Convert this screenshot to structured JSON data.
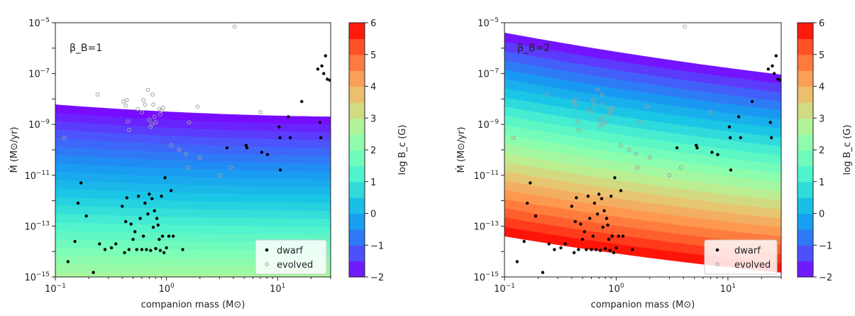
{
  "chart_data": [
    {
      "type": "scatter",
      "panel": "left",
      "annotation": "β_B=1",
      "xlabel": "companion mass (M⊙)",
      "ylabel": "Ṁ (M⊙/yr)",
      "xscale": "log",
      "yscale": "log",
      "xlim": [
        0.1,
        30
      ],
      "ylim": [
        1e-15,
        1e-05
      ],
      "x_ticks": [
        {
          "value": 0.1,
          "base": "10",
          "exp": "−1"
        },
        {
          "value": 1,
          "base": "10",
          "exp": "0"
        },
        {
          "value": 10,
          "base": "10",
          "exp": "1"
        }
      ],
      "y_ticks": [
        {
          "value": 1e-15,
          "base": "10",
          "exp": "−15"
        },
        {
          "value": 1e-13,
          "base": "10",
          "exp": "−13"
        },
        {
          "value": 1e-11,
          "base": "10",
          "exp": "−11"
        },
        {
          "value": 1e-09,
          "base": "10",
          "exp": "−9"
        },
        {
          "value": 1e-07,
          "base": "10",
          "exp": "−7"
        },
        {
          "value": 1e-05,
          "base": "10",
          "exp": "−5"
        }
      ],
      "contour_field": {
        "variable": "log B_c (G)",
        "mdot_cap_at_0.1": 6e-09,
        "mdot_cap_at_30": 2e-09
      },
      "colorbar": {
        "label": "log B_c (G)",
        "min": -2,
        "max": 6,
        "ticks": [
          "−2",
          "−1",
          "0",
          "1",
          "2",
          "3",
          "4",
          "5",
          "6"
        ]
      },
      "legend": {
        "position": "lower-right",
        "entries": [
          "dwarf",
          "evolved"
        ]
      },
      "series": [
        {
          "name": "dwarf",
          "style": "filled-black",
          "points": [
            [
              0.13,
              4e-15
            ],
            [
              0.15,
              2.5e-14
            ],
            [
              0.16,
              8e-13
            ],
            [
              0.17,
              5e-12
            ],
            [
              0.19,
              2.5e-13
            ],
            [
              0.22,
              1.5e-15
            ],
            [
              0.25,
              2e-14
            ],
            [
              0.28,
              1.2e-14
            ],
            [
              0.32,
              1.4e-14
            ],
            [
              0.35,
              2e-14
            ],
            [
              0.4,
              6e-13
            ],
            [
              0.42,
              9e-15
            ],
            [
              0.43,
              1.5e-13
            ],
            [
              0.44,
              1.3e-12
            ],
            [
              0.46,
              1.2e-14
            ],
            [
              0.48,
              1.2e-13
            ],
            [
              0.5,
              3e-14
            ],
            [
              0.52,
              6e-14
            ],
            [
              0.54,
              1.2e-14
            ],
            [
              0.56,
              1.5e-12
            ],
            [
              0.58,
              2e-13
            ],
            [
              0.6,
              1.2e-14
            ],
            [
              0.62,
              4e-14
            ],
            [
              0.64,
              8e-13
            ],
            [
              0.66,
              1.2e-14
            ],
            [
              0.68,
              3e-13
            ],
            [
              0.7,
              1.8e-12
            ],
            [
              0.72,
              1.1e-14
            ],
            [
              0.74,
              1.2e-12
            ],
            [
              0.76,
              9e-14
            ],
            [
              0.78,
              4e-13
            ],
            [
              0.8,
              1.3e-14
            ],
            [
              0.82,
              2e-13
            ],
            [
              0.84,
              1.1e-13
            ],
            [
              0.86,
              3e-14
            ],
            [
              0.88,
              1.1e-14
            ],
            [
              0.9,
              1.5e-12
            ],
            [
              0.92,
              4e-14
            ],
            [
              0.95,
              9e-15
            ],
            [
              0.97,
              8e-12
            ],
            [
              1.0,
              1.4e-14
            ],
            [
              1.05,
              4e-14
            ],
            [
              1.1,
              2.5e-12
            ],
            [
              1.15,
              4e-14
            ],
            [
              1.4,
              1.2e-14
            ],
            [
              3.5,
              1.2e-10
            ],
            [
              5.2,
              1.5e-10
            ],
            [
              5.3,
              1.2e-10
            ],
            [
              7.2,
              8e-11
            ],
            [
              8.1,
              6.5e-11
            ],
            [
              10.3,
              8e-10
            ],
            [
              10.5,
              3e-10
            ],
            [
              10.6,
              1.6e-11
            ],
            [
              12.5,
              2e-09
            ],
            [
              13.0,
              3e-10
            ],
            [
              16.5,
              8e-09
            ],
            [
              23.0,
              1.5e-07
            ],
            [
              24.0,
              1.2e-09
            ],
            [
              25.0,
              2e-07
            ],
            [
              26.0,
              1e-07
            ],
            [
              27.0,
              5e-07
            ],
            [
              28.0,
              6e-08
            ],
            [
              29.5,
              5.5e-08
            ],
            [
              24.5,
              3e-10
            ]
          ]
        },
        {
          "name": "evolved",
          "style": "open-grey",
          "points": [
            [
              0.12,
              3e-10
            ],
            [
              0.24,
              1.5e-08
            ],
            [
              0.41,
              8e-09
            ],
            [
              0.43,
              5.5e-09
            ],
            [
              0.44,
              9e-09
            ],
            [
              0.45,
              1.3e-09
            ],
            [
              0.46,
              6e-10
            ],
            [
              0.55,
              4e-09
            ],
            [
              0.6,
              3e-09
            ],
            [
              0.62,
              9e-09
            ],
            [
              0.64,
              6e-09
            ],
            [
              0.68,
              2.3e-08
            ],
            [
              0.7,
              1.5e-09
            ],
            [
              0.72,
              8e-10
            ],
            [
              0.74,
              1e-09
            ],
            [
              0.75,
              1.5e-08
            ],
            [
              0.76,
              6e-09
            ],
            [
              0.78,
              2e-09
            ],
            [
              0.8,
              1.2e-09
            ],
            [
              0.86,
              4e-09
            ],
            [
              0.88,
              2.5e-09
            ],
            [
              0.9,
              3.5e-09
            ],
            [
              0.93,
              4.5e-09
            ],
            [
              1.1,
              1.5e-10
            ],
            [
              1.3,
              1e-10
            ],
            [
              1.5,
              7e-11
            ],
            [
              1.55,
              2e-11
            ],
            [
              1.6,
              1.2e-09
            ],
            [
              1.9,
              5e-09
            ],
            [
              2.0,
              5e-11
            ],
            [
              3.0,
              1e-11
            ],
            [
              4.1,
              7e-06
            ],
            [
              3.8,
              2e-11
            ],
            [
              7.0,
              3e-09
            ]
          ]
        }
      ]
    },
    {
      "type": "scatter",
      "panel": "right",
      "annotation": "β_B=2",
      "xlabel": "companion mass (M⊙)",
      "ylabel": "Ṁ (M⊙/yr)",
      "xscale": "log",
      "yscale": "log",
      "xlim": [
        0.1,
        30
      ],
      "ylim": [
        1e-15,
        1e-05
      ],
      "x_ticks": [
        {
          "value": 0.1,
          "base": "10",
          "exp": "−1"
        },
        {
          "value": 1,
          "base": "10",
          "exp": "0"
        },
        {
          "value": 10,
          "base": "10",
          "exp": "1"
        }
      ],
      "y_ticks": [
        {
          "value": 1e-15,
          "base": "10",
          "exp": "−15"
        },
        {
          "value": 1e-13,
          "base": "10",
          "exp": "−13"
        },
        {
          "value": 1e-11,
          "base": "10",
          "exp": "−11"
        },
        {
          "value": 1e-09,
          "base": "10",
          "exp": "−9"
        },
        {
          "value": 1e-07,
          "base": "10",
          "exp": "−7"
        },
        {
          "value": 1e-05,
          "base": "10",
          "exp": "−5"
        }
      ],
      "contour_field": {
        "variable": "log B_c (G)",
        "mdot_cap_at_0.1": 4e-06,
        "mdot_cap_at_30": 9e-08,
        "mdot_floor_at_0.1": 4e-14,
        "mdot_floor_at_30": 1.5e-15
      },
      "colorbar": {
        "label": "log B_c (G)",
        "min": -2,
        "max": 6,
        "ticks": [
          "−2",
          "−1",
          "0",
          "1",
          "2",
          "3",
          "4",
          "5",
          "6"
        ]
      },
      "legend": {
        "position": "lower-right",
        "entries": [
          "dwarf",
          "evolved"
        ]
      },
      "series": [
        {
          "name": "dwarf",
          "style": "filled-black",
          "points": [
            [
              0.13,
              4e-15
            ],
            [
              0.15,
              2.5e-14
            ],
            [
              0.16,
              8e-13
            ],
            [
              0.17,
              5e-12
            ],
            [
              0.19,
              2.5e-13
            ],
            [
              0.22,
              1.5e-15
            ],
            [
              0.25,
              2e-14
            ],
            [
              0.28,
              1.2e-14
            ],
            [
              0.32,
              1.4e-14
            ],
            [
              0.35,
              2e-14
            ],
            [
              0.4,
              6e-13
            ],
            [
              0.42,
              9e-15
            ],
            [
              0.43,
              1.5e-13
            ],
            [
              0.44,
              1.3e-12
            ],
            [
              0.46,
              1.2e-14
            ],
            [
              0.48,
              1.2e-13
            ],
            [
              0.5,
              3e-14
            ],
            [
              0.52,
              6e-14
            ],
            [
              0.54,
              1.2e-14
            ],
            [
              0.56,
              1.5e-12
            ],
            [
              0.58,
              2e-13
            ],
            [
              0.6,
              1.2e-14
            ],
            [
              0.62,
              4e-14
            ],
            [
              0.64,
              8e-13
            ],
            [
              0.66,
              1.2e-14
            ],
            [
              0.68,
              3e-13
            ],
            [
              0.7,
              1.8e-12
            ],
            [
              0.72,
              1.1e-14
            ],
            [
              0.74,
              1.2e-12
            ],
            [
              0.76,
              9e-14
            ],
            [
              0.78,
              4e-13
            ],
            [
              0.8,
              1.3e-14
            ],
            [
              0.82,
              2e-13
            ],
            [
              0.84,
              1.1e-13
            ],
            [
              0.86,
              3e-14
            ],
            [
              0.88,
              1.1e-14
            ],
            [
              0.9,
              1.5e-12
            ],
            [
              0.92,
              4e-14
            ],
            [
              0.95,
              9e-15
            ],
            [
              0.97,
              8e-12
            ],
            [
              1.0,
              1.4e-14
            ],
            [
              1.05,
              4e-14
            ],
            [
              1.1,
              2.5e-12
            ],
            [
              1.15,
              4e-14
            ],
            [
              1.4,
              1.2e-14
            ],
            [
              3.5,
              1.2e-10
            ],
            [
              5.2,
              1.5e-10
            ],
            [
              5.3,
              1.2e-10
            ],
            [
              7.2,
              8e-11
            ],
            [
              8.1,
              6.5e-11
            ],
            [
              10.3,
              8e-10
            ],
            [
              10.5,
              3e-10
            ],
            [
              10.6,
              1.6e-11
            ],
            [
              12.5,
              2e-09
            ],
            [
              13.0,
              3e-10
            ],
            [
              16.5,
              8e-09
            ],
            [
              23.0,
              1.5e-07
            ],
            [
              24.0,
              1.2e-09
            ],
            [
              25.0,
              2e-07
            ],
            [
              26.0,
              1e-07
            ],
            [
              27.0,
              5e-07
            ],
            [
              28.0,
              6e-08
            ],
            [
              29.5,
              5.5e-08
            ],
            [
              24.5,
              3e-10
            ]
          ]
        },
        {
          "name": "evolved",
          "style": "open-grey",
          "points": [
            [
              0.12,
              3e-10
            ],
            [
              0.24,
              1.5e-08
            ],
            [
              0.41,
              8e-09
            ],
            [
              0.43,
              5.5e-09
            ],
            [
              0.44,
              9e-09
            ],
            [
              0.45,
              1.3e-09
            ],
            [
              0.46,
              6e-10
            ],
            [
              0.55,
              4e-09
            ],
            [
              0.6,
              3e-09
            ],
            [
              0.62,
              9e-09
            ],
            [
              0.64,
              6e-09
            ],
            [
              0.68,
              2.3e-08
            ],
            [
              0.7,
              1.5e-09
            ],
            [
              0.72,
              8e-10
            ],
            [
              0.74,
              1e-09
            ],
            [
              0.75,
              1.5e-08
            ],
            [
              0.76,
              6e-09
            ],
            [
              0.78,
              2e-09
            ],
            [
              0.8,
              1.2e-09
            ],
            [
              0.86,
              4e-09
            ],
            [
              0.88,
              2.5e-09
            ],
            [
              0.9,
              3.5e-09
            ],
            [
              0.93,
              4.5e-09
            ],
            [
              1.1,
              1.5e-10
            ],
            [
              1.3,
              1e-10
            ],
            [
              1.5,
              7e-11
            ],
            [
              1.55,
              2e-11
            ],
            [
              1.6,
              1.2e-09
            ],
            [
              1.9,
              5e-09
            ],
            [
              2.0,
              5e-11
            ],
            [
              3.0,
              1e-11
            ],
            [
              4.1,
              7e-06
            ],
            [
              3.8,
              2e-11
            ],
            [
              7.0,
              3e-09
            ]
          ]
        }
      ]
    }
  ],
  "colors": {
    "dwarf": "#000000",
    "evolved_edge": "#a0a0a0",
    "axes": "#222222",
    "legend_bg": "#ffffff",
    "rainbow": [
      "#8000ff",
      "#4a56fb",
      "#1996f3",
      "#19c8e4",
      "#4df3ce",
      "#80ffb4",
      "#b4f396",
      "#e6c873",
      "#ff964f",
      "#ff5627",
      "#ff0000"
    ]
  }
}
